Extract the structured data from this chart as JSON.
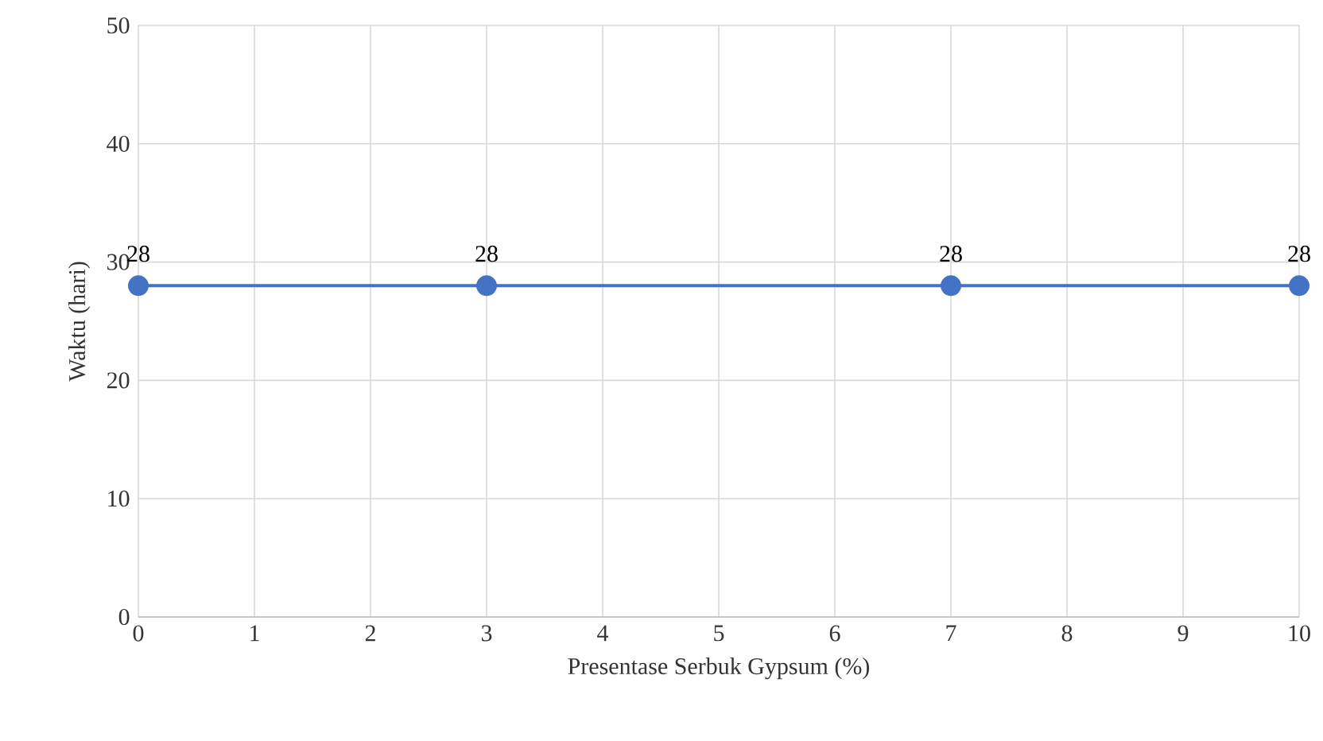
{
  "chart_data": {
    "type": "line",
    "xlabel": "Presentase Serbuk Gypsum (%)",
    "ylabel": "Waktu (hari)",
    "x": [
      0,
      3,
      7,
      10
    ],
    "values": [
      28,
      28,
      28,
      28
    ],
    "color": "#4472c4",
    "marker": "circle",
    "data_labels": true,
    "grid": true,
    "xlim": [
      0,
      10
    ],
    "ylim": [
      0,
      50
    ],
    "xticks": [
      0,
      1,
      2,
      3,
      4,
      5,
      6,
      7,
      8,
      9,
      10
    ],
    "yticks": [
      0,
      10,
      20,
      30,
      40,
      50
    ]
  }
}
